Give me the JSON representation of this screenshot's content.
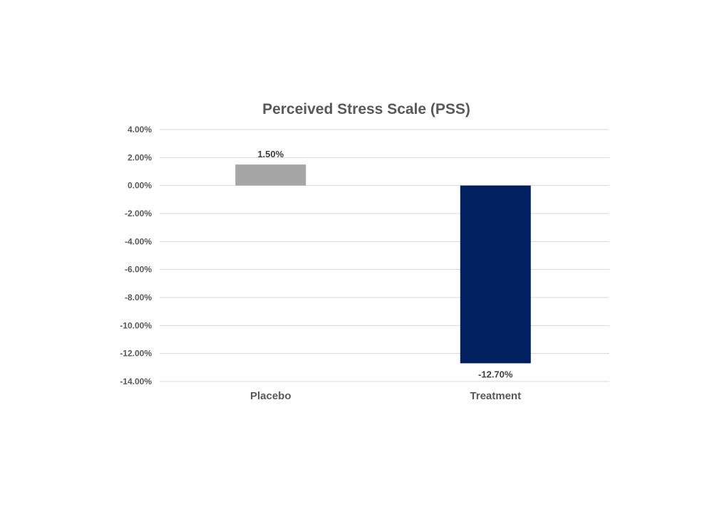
{
  "chart_data": {
    "type": "bar",
    "title": "Perceived Stress Scale (PSS)",
    "categories": [
      "Placebo",
      "Treatment"
    ],
    "values": [
      1.5,
      -12.7
    ],
    "data_labels": [
      "1.50%",
      "-12.70%"
    ],
    "bar_colors": [
      "#a6a6a6",
      "#002060"
    ],
    "xlabel": "",
    "ylabel": "",
    "ylim": [
      -14,
      4
    ],
    "y_ticks": [
      4,
      2,
      0,
      -2,
      -4,
      -6,
      -8,
      -10,
      -12,
      -14
    ],
    "y_tick_labels": [
      "4.00%",
      "2.00%",
      "0.00%",
      "-2.00%",
      "-4.00%",
      "-6.00%",
      "-8.00%",
      "-10.00%",
      "-12.00%",
      "-14.00%"
    ],
    "grid": true,
    "legend": "none"
  }
}
